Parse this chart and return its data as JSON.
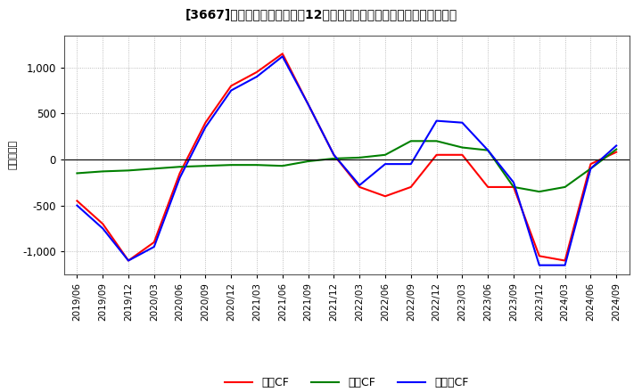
{
  "title": "[3667]　キャッシュフローの12か月移動合計の対前年同期増減額の推移",
  "ylabel": "（百万円）",
  "ylim": [
    -1250,
    1350
  ],
  "yticks": [
    -1000,
    -500,
    0,
    500,
    1000
  ],
  "legend_labels": [
    "営業CF",
    "投資CF",
    "フリーCF"
  ],
  "line_colors": [
    "#ff0000",
    "#008000",
    "#0000ff"
  ],
  "x_labels": [
    "2019/06",
    "2019/09",
    "2019/12",
    "2020/03",
    "2020/06",
    "2020/09",
    "2020/12",
    "2021/03",
    "2021/06",
    "2021/09",
    "2021/12",
    "2022/03",
    "2022/06",
    "2022/09",
    "2022/12",
    "2023/03",
    "2023/06",
    "2023/09",
    "2023/12",
    "2024/03",
    "2024/06",
    "2024/09"
  ],
  "operating_cf": [
    -450,
    -700,
    -1100,
    -900,
    -150,
    400,
    800,
    950,
    1150,
    600,
    50,
    -300,
    -400,
    -300,
    50,
    50,
    -300,
    -300,
    -1050,
    -1100,
    -50,
    80
  ],
  "investing_cf": [
    -150,
    -130,
    -120,
    -100,
    -80,
    -70,
    -60,
    -60,
    -70,
    -20,
    10,
    20,
    50,
    200,
    200,
    130,
    100,
    -300,
    -350,
    -300,
    -100,
    110
  ],
  "free_cf": [
    -500,
    -750,
    -1100,
    -950,
    -200,
    350,
    750,
    900,
    1120,
    600,
    50,
    -280,
    -50,
    -50,
    420,
    400,
    100,
    -250,
    -1150,
    -1150,
    -100,
    150
  ]
}
